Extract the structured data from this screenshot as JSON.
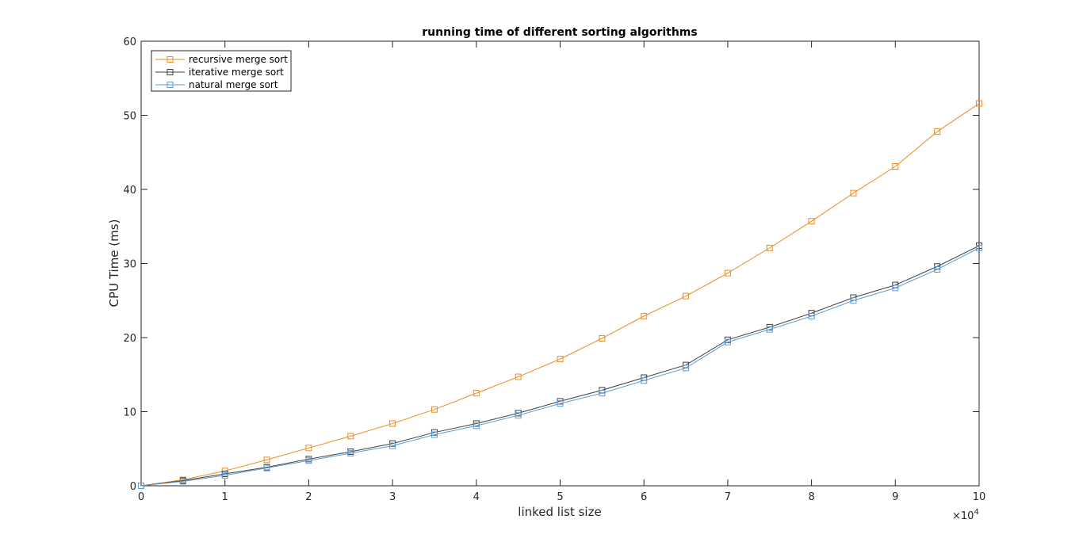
{
  "chart_data": {
    "type": "line",
    "title": "running time of different sorting algorithms",
    "xlabel": "linked list size",
    "ylabel": "CPU Time (ms)",
    "x_exponent_label": "×10",
    "x_exponent_power": "4",
    "xlim": [
      0,
      100000
    ],
    "ylim": [
      0,
      60
    ],
    "x_ticks": [
      0,
      10000,
      20000,
      30000,
      40000,
      50000,
      60000,
      70000,
      80000,
      90000,
      100000
    ],
    "x_tick_labels": [
      "0",
      "1",
      "2",
      "3",
      "4",
      "5",
      "6",
      "7",
      "8",
      "9",
      "10"
    ],
    "y_ticks": [
      0,
      10,
      20,
      30,
      40,
      50,
      60
    ],
    "y_tick_labels": [
      "0",
      "10",
      "20",
      "30",
      "40",
      "50",
      "60"
    ],
    "grid": false,
    "legend_position": "top-left",
    "marker": "square",
    "x": [
      0,
      5000,
      10000,
      15000,
      20000,
      25000,
      30000,
      35000,
      40000,
      45000,
      50000,
      55000,
      60000,
      65000,
      70000,
      75000,
      80000,
      85000,
      90000,
      95000,
      100000
    ],
    "series": [
      {
        "name": "recursive merge sort",
        "color": "#ED8A1F",
        "values": [
          0,
          0.8,
          2.0,
          3.5,
          5.1,
          6.7,
          8.4,
          10.3,
          12.5,
          14.7,
          17.1,
          19.9,
          22.9,
          25.6,
          28.7,
          32.1,
          35.7,
          39.5,
          43.1,
          47.8,
          51.6
        ]
      },
      {
        "name": "iterative merge sort",
        "color": "#3E3E3E",
        "values": [
          0,
          0.7,
          1.6,
          2.5,
          3.6,
          4.6,
          5.7,
          7.2,
          8.4,
          9.8,
          11.4,
          12.9,
          14.6,
          16.3,
          19.7,
          21.4,
          23.3,
          25.4,
          27.1,
          29.6,
          32.4
        ]
      },
      {
        "name": "natural merge sort",
        "color": "#5B9BD5",
        "values": [
          0,
          0.6,
          1.4,
          2.4,
          3.4,
          4.4,
          5.4,
          6.9,
          8.1,
          9.5,
          11.1,
          12.5,
          14.2,
          15.9,
          19.4,
          21.1,
          22.9,
          25.0,
          26.7,
          29.2,
          32.1
        ]
      }
    ]
  }
}
